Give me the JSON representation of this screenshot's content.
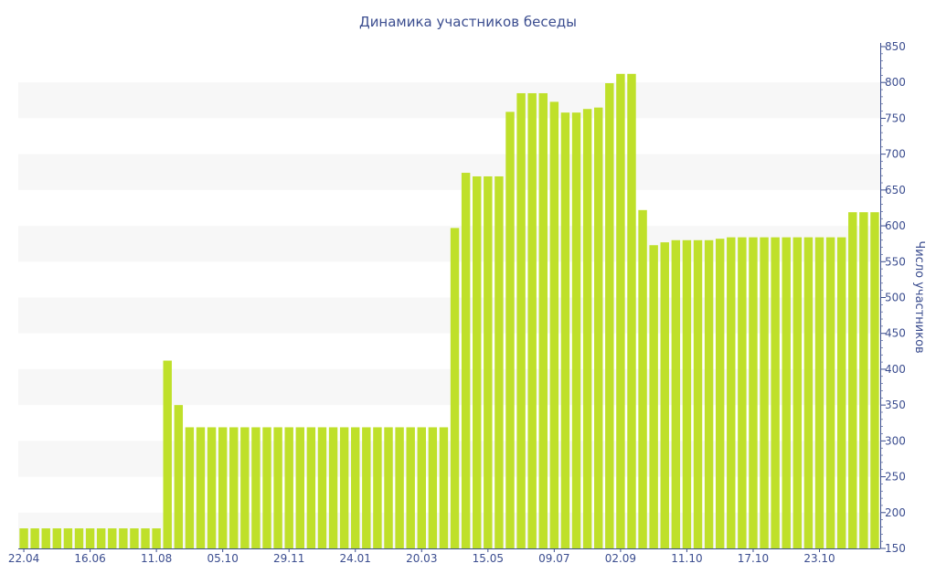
{
  "chart_data": {
    "type": "bar",
    "title": "Динамика участников беседы",
    "ylabel": "Число участников",
    "xlabel": "",
    "ylim": [
      150,
      850
    ],
    "y_ticks": [
      150,
      200,
      250,
      300,
      350,
      400,
      450,
      500,
      550,
      600,
      650,
      700,
      750,
      800,
      850
    ],
    "grid": "alternating horizontal bands",
    "y_axis_position": "right",
    "x_tick_labels": [
      {
        "index": 0,
        "label": "22.04"
      },
      {
        "index": 6,
        "label": "16.06"
      },
      {
        "index": 12,
        "label": "11.08"
      },
      {
        "index": 18,
        "label": "05.10"
      },
      {
        "index": 24,
        "label": "29.11"
      },
      {
        "index": 30,
        "label": "24.01"
      },
      {
        "index": 36,
        "label": "20.03"
      },
      {
        "index": 42,
        "label": "15.05"
      },
      {
        "index": 48,
        "label": "09.07"
      },
      {
        "index": 54,
        "label": "02.09"
      },
      {
        "index": 60,
        "label": "11.10"
      },
      {
        "index": 66,
        "label": "17.10"
      },
      {
        "index": 72,
        "label": "23.10"
      }
    ],
    "values": [
      178,
      178,
      178,
      178,
      178,
      178,
      178,
      178,
      178,
      178,
      178,
      178,
      178,
      412,
      350,
      319,
      319,
      319,
      319,
      319,
      319,
      319,
      319,
      319,
      319,
      319,
      319,
      319,
      319,
      319,
      319,
      319,
      319,
      319,
      319,
      319,
      319,
      319,
      319,
      597,
      674,
      669,
      669,
      669,
      759,
      785,
      785,
      785,
      773,
      758,
      758,
      763,
      765,
      799,
      812,
      812,
      622,
      573,
      577,
      580,
      580,
      580,
      580,
      582,
      584,
      584,
      584,
      584,
      584,
      584,
      584,
      584,
      584,
      584,
      584,
      619,
      619,
      619
    ]
  },
  "colors": {
    "bar": "#bfe02a",
    "band": "#f7f7f7",
    "text": "#3b4d8f",
    "axis": "#3b4d8f"
  }
}
